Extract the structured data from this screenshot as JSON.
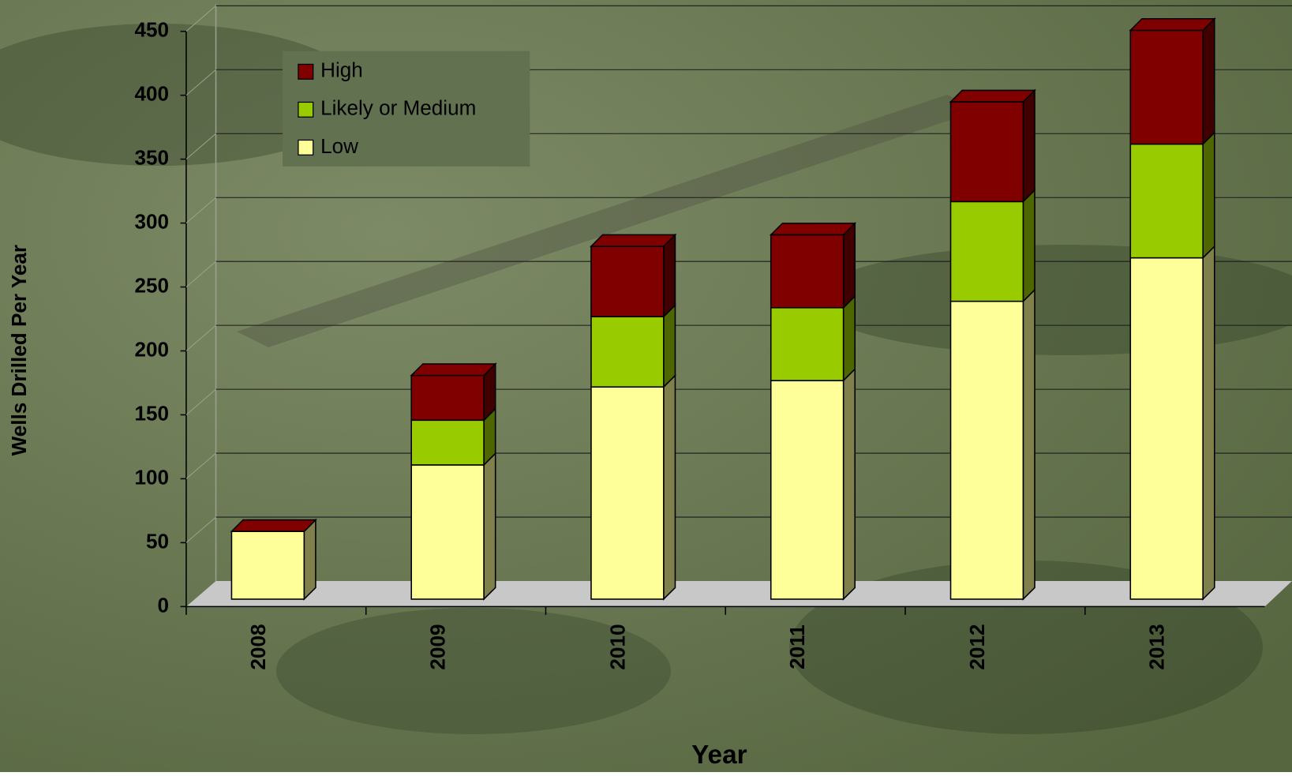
{
  "chart_data": {
    "type": "bar",
    "stacked": true,
    "x_label": "Year",
    "y_label": "Wells Drilled Per Year",
    "categories": [
      "2008",
      "2009",
      "2010",
      "2011",
      "2012",
      "2013"
    ],
    "series": [
      {
        "name": "Low",
        "color": "#ffff99",
        "values": [
          53,
          105,
          166,
          171,
          233,
          267
        ]
      },
      {
        "name": "Likely or Medium",
        "color": "#99cc00",
        "values": [
          0,
          35,
          55,
          57,
          78,
          89
        ]
      },
      {
        "name": "High",
        "color": "#800000",
        "values": [
          0,
          35,
          55,
          57,
          78,
          89
        ]
      }
    ],
    "ylim": [
      0,
      450
    ],
    "yticks": [
      0,
      50,
      100,
      150,
      200,
      250,
      300,
      350,
      400,
      450
    ],
    "grid": true,
    "legend": "top-left"
  }
}
